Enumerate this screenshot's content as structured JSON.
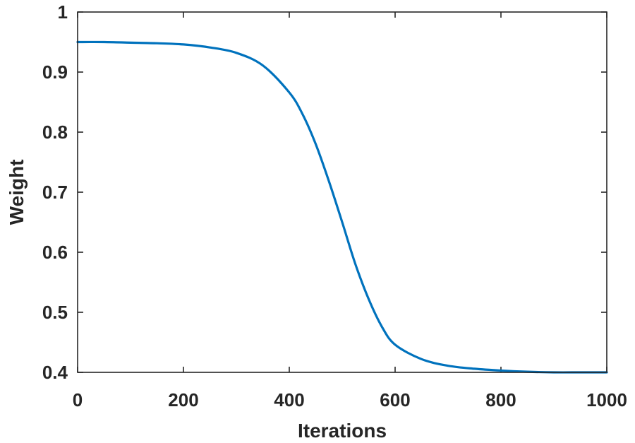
{
  "chart_data": {
    "type": "line",
    "xlabel": "Iterations",
    "ylabel": "Weight",
    "xlim": [
      0,
      1000
    ],
    "ylim": [
      0.4,
      1
    ],
    "x_ticks": [
      0,
      200,
      400,
      600,
      800,
      1000
    ],
    "y_ticks": [
      0.4,
      0.5,
      0.6,
      0.7,
      0.8,
      0.9,
      1
    ],
    "x_tick_labels": [
      "0",
      "200",
      "400",
      "600",
      "800",
      "1000"
    ],
    "y_tick_labels": [
      "0.4",
      "0.5",
      "0.6",
      "0.7",
      "0.8",
      "0.9",
      "1"
    ],
    "grid": false,
    "series": [
      {
        "color": "#0072BD",
        "x": [
          0,
          50,
          100,
          150,
          200,
          250,
          300,
          350,
          400,
          425,
          450,
          475,
          500,
          525,
          550,
          575,
          600,
          650,
          700,
          750,
          800,
          850,
          900,
          950,
          1000
        ],
        "y": [
          0.95,
          0.95,
          0.949,
          0.948,
          0.946,
          0.941,
          0.932,
          0.911,
          0.866,
          0.83,
          0.78,
          0.718,
          0.65,
          0.58,
          0.522,
          0.476,
          0.446,
          0.422,
          0.411,
          0.406,
          0.403,
          0.401,
          0.4,
          0.4,
          0.4
        ]
      }
    ]
  }
}
